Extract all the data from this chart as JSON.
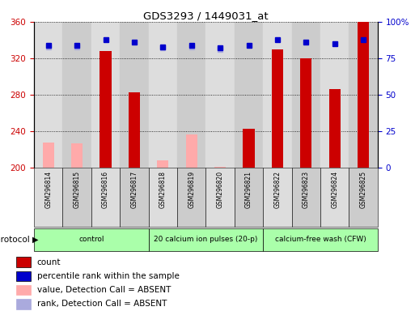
{
  "title": "GDS3293 / 1449031_at",
  "samples": [
    "GSM296814",
    "GSM296815",
    "GSM296816",
    "GSM296817",
    "GSM296818",
    "GSM296819",
    "GSM296820",
    "GSM296821",
    "GSM296822",
    "GSM296823",
    "GSM296824",
    "GSM296825"
  ],
  "group_boundaries": [
    0,
    4,
    8,
    12
  ],
  "group_labels": [
    "control",
    "20 calcium ion pulses (20-p)",
    "calcium-free wash (CFW)"
  ],
  "group_color": "#aaffaa",
  "count_values": [
    null,
    null,
    328,
    283,
    null,
    null,
    null,
    243,
    330,
    320,
    286,
    360
  ],
  "count_color": "#cc0000",
  "absent_value_values": [
    228,
    227,
    null,
    null,
    208,
    237,
    201,
    null,
    null,
    null,
    null,
    null
  ],
  "absent_value_color": "#ffaaaa",
  "percentile_values": [
    84,
    84,
    88,
    86,
    83,
    84,
    82,
    84,
    88,
    86,
    85,
    88
  ],
  "percentile_color": "#0000cc",
  "absent_rank_values": [
    83,
    83,
    null,
    null,
    82,
    83,
    81,
    null,
    null,
    null,
    null,
    null
  ],
  "absent_rank_color": "#aaaadd",
  "ylim": [
    200,
    360
  ],
  "y2lim": [
    0,
    100
  ],
  "yticks": [
    200,
    240,
    280,
    320,
    360
  ],
  "y2ticks": [
    0,
    25,
    50,
    75,
    100
  ],
  "y2ticklabels": [
    "0",
    "25",
    "50",
    "75",
    "100%"
  ],
  "ylabel_color_left": "#cc0000",
  "ylabel_color_right": "#0000cc",
  "col_bg_even": "#dddddd",
  "col_bg_odd": "#cccccc",
  "legend_items": [
    {
      "color": "#cc0000",
      "label": "count"
    },
    {
      "color": "#0000cc",
      "label": "percentile rank within the sample"
    },
    {
      "color": "#ffaaaa",
      "label": "value, Detection Call = ABSENT"
    },
    {
      "color": "#aaaadd",
      "label": "rank, Detection Call = ABSENT"
    }
  ]
}
